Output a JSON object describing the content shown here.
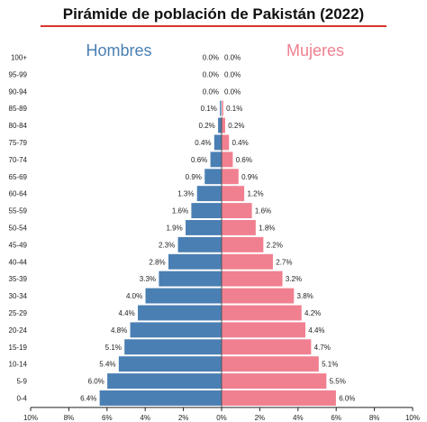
{
  "chart_data": {
    "type": "bar",
    "orientation": "horizontal-population-pyramid",
    "title": "Pirámide de población de Pakistán (2022)",
    "categories": [
      "100+",
      "95-99",
      "90-94",
      "85-89",
      "80-84",
      "75-79",
      "70-74",
      "65-69",
      "60-64",
      "55-59",
      "50-54",
      "45-49",
      "40-44",
      "35-39",
      "30-34",
      "25-29",
      "20-24",
      "15-19",
      "10-14",
      "5-9",
      "0-4"
    ],
    "series": [
      {
        "name": "Hombres",
        "color": "#4a7fb3",
        "values": [
          0.0,
          0.0,
          0.0,
          0.1,
          0.2,
          0.4,
          0.6,
          0.9,
          1.3,
          1.6,
          1.9,
          2.3,
          2.8,
          3.3,
          4.0,
          4.4,
          4.8,
          5.1,
          5.4,
          6.0,
          6.4
        ],
        "labels": [
          "0.0%",
          "0.0%",
          "0.0%",
          "0.1%",
          "0.2%",
          "0.4%",
          "0.6%",
          "0.9%",
          "1.3%",
          "1.6%",
          "1.9%",
          "2.3%",
          "2.8%",
          "3.3%",
          "4.0%",
          "4.4%",
          "4.8%",
          "5.1%",
          "5.4%",
          "6.0%",
          "6.4%"
        ]
      },
      {
        "name": "Mujeres",
        "color": "#f08090",
        "values": [
          0.0,
          0.0,
          0.0,
          0.1,
          0.2,
          0.4,
          0.6,
          0.9,
          1.2,
          1.6,
          1.8,
          2.2,
          2.7,
          3.2,
          3.8,
          4.2,
          4.4,
          4.7,
          5.1,
          5.5,
          6.0
        ],
        "labels": [
          "0.0%",
          "0.0%",
          "0.0%",
          "0.1%",
          "0.2%",
          "0.4%",
          "0.6%",
          "0.9%",
          "1.2%",
          "1.6%",
          "1.8%",
          "2.2%",
          "2.7%",
          "3.2%",
          "3.8%",
          "4.2%",
          "4.4%",
          "4.7%",
          "5.1%",
          "5.5%",
          "6.0%"
        ]
      }
    ],
    "xlim": [
      -10,
      10
    ],
    "xticks": [
      -10,
      -8,
      -6,
      -4,
      -2,
      0,
      2,
      4,
      6,
      8,
      10
    ],
    "xtick_labels": [
      "10%",
      "8%",
      "6%",
      "4%",
      "2%",
      "0%",
      "2%",
      "4%",
      "6%",
      "8%",
      "10%"
    ],
    "grid": false,
    "legend": "top, as side labels"
  }
}
